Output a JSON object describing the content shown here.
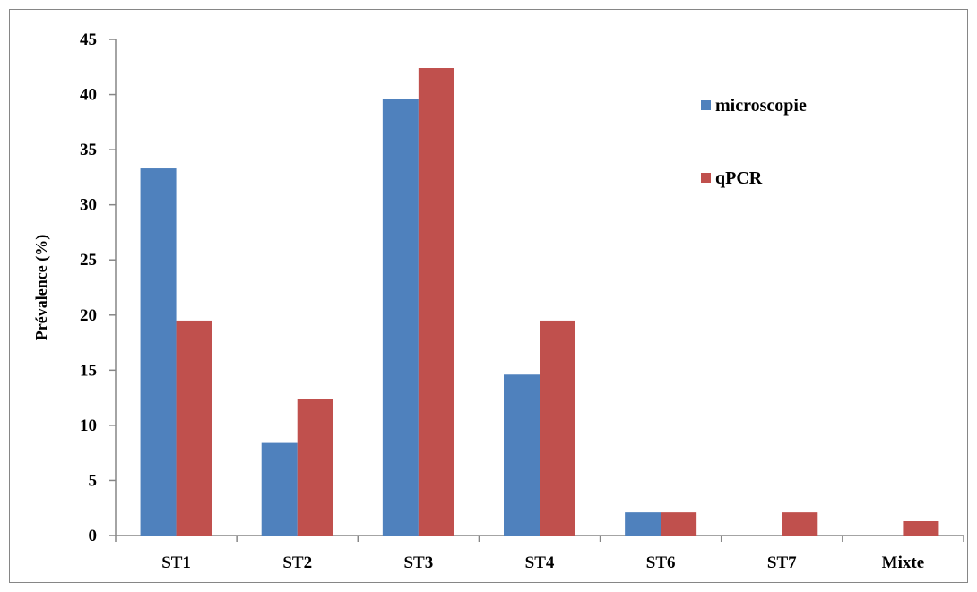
{
  "chart_data": {
    "type": "bar",
    "title": "",
    "xlabel": "",
    "ylabel": "Prévalence (%)",
    "ylim": [
      0,
      45
    ],
    "yticks": [
      0,
      5,
      10,
      15,
      20,
      25,
      30,
      35,
      40,
      45
    ],
    "categories": [
      "ST1",
      "ST2",
      "ST3",
      "ST4",
      "ST6",
      "ST7",
      "Mixte"
    ],
    "series": [
      {
        "name": "microscopie",
        "color": "#4f81bd",
        "values": [
          33.3,
          8.4,
          39.6,
          14.6,
          2.1,
          0,
          0
        ]
      },
      {
        "name": "qPCR",
        "color": "#c0504d",
        "values": [
          19.5,
          12.4,
          42.4,
          19.5,
          2.1,
          2.1,
          1.3
        ]
      }
    ],
    "legend_position": "top-right",
    "grid": false
  }
}
